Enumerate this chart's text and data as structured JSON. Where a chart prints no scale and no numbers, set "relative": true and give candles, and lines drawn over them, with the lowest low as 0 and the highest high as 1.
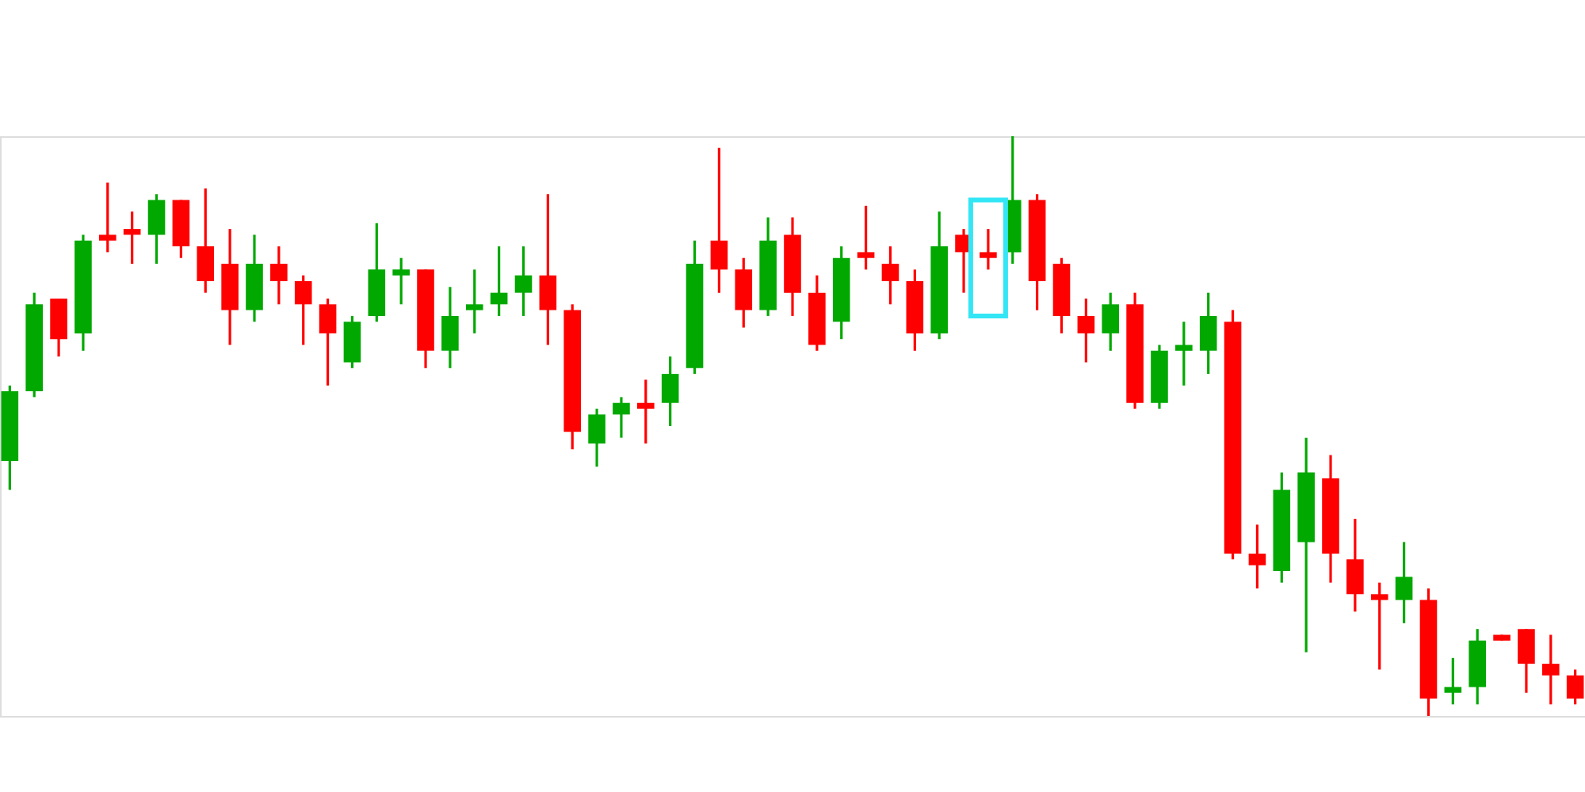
{
  "chart_data": {
    "type": "candlestick",
    "relative": true,
    "categories": [
      null,
      null,
      null,
      null,
      null,
      null,
      null,
      null,
      null,
      null,
      null,
      null,
      null,
      null,
      null,
      null,
      null,
      null,
      null,
      null,
      null,
      null,
      null,
      null,
      null,
      null,
      null,
      null,
      null,
      null,
      null,
      null,
      null,
      null,
      null,
      null,
      null,
      null,
      null,
      null,
      null,
      null,
      null,
      null,
      null,
      null,
      null,
      null,
      null,
      null,
      null,
      null,
      null,
      null,
      null,
      null,
      null,
      null,
      null,
      null,
      null,
      null,
      null,
      null,
      null
    ],
    "ohlc": [
      [
        0.44,
        0.57,
        0.39,
        0.56
      ],
      [
        0.56,
        0.73,
        0.55,
        0.71
      ],
      [
        0.72,
        0.72,
        0.62,
        0.65
      ],
      [
        0.66,
        0.83,
        0.63,
        0.82
      ],
      [
        0.83,
        0.92,
        0.8,
        0.82
      ],
      [
        0.84,
        0.87,
        0.78,
        0.83
      ],
      [
        0.83,
        0.9,
        0.78,
        0.89
      ],
      [
        0.89,
        0.89,
        0.79,
        0.81
      ],
      [
        0.81,
        0.91,
        0.73,
        0.75
      ],
      [
        0.78,
        0.84,
        0.64,
        0.7
      ],
      [
        0.7,
        0.83,
        0.68,
        0.78
      ],
      [
        0.78,
        0.81,
        0.71,
        0.75
      ],
      [
        0.75,
        0.76,
        0.64,
        0.71
      ],
      [
        0.71,
        0.72,
        0.57,
        0.66
      ],
      [
        0.61,
        0.69,
        0.6,
        0.68
      ],
      [
        0.69,
        0.85,
        0.68,
        0.77
      ],
      [
        0.76,
        0.79,
        0.71,
        0.77
      ],
      [
        0.77,
        0.77,
        0.6,
        0.63
      ],
      [
        0.63,
        0.74,
        0.6,
        0.69
      ],
      [
        0.7,
        0.77,
        0.66,
        0.71
      ],
      [
        0.71,
        0.81,
        0.69,
        0.73
      ],
      [
        0.73,
        0.81,
        0.69,
        0.76
      ],
      [
        0.76,
        0.9,
        0.64,
        0.7
      ],
      [
        0.7,
        0.71,
        0.46,
        0.49
      ],
      [
        0.47,
        0.53,
        0.43,
        0.52
      ],
      [
        0.52,
        0.55,
        0.48,
        0.54
      ],
      [
        0.54,
        0.58,
        0.47,
        0.53
      ],
      [
        0.54,
        0.62,
        0.5,
        0.59
      ],
      [
        0.6,
        0.82,
        0.59,
        0.78
      ],
      [
        0.82,
        0.98,
        0.73,
        0.77
      ],
      [
        0.77,
        0.79,
        0.67,
        0.7
      ],
      [
        0.7,
        0.86,
        0.69,
        0.82
      ],
      [
        0.83,
        0.86,
        0.69,
        0.73
      ],
      [
        0.73,
        0.76,
        0.63,
        0.64
      ],
      [
        0.68,
        0.81,
        0.65,
        0.79
      ],
      [
        0.8,
        0.88,
        0.77,
        0.79
      ],
      [
        0.78,
        0.81,
        0.71,
        0.75
      ],
      [
        0.75,
        0.77,
        0.63,
        0.66
      ],
      [
        0.66,
        0.87,
        0.65,
        0.81
      ],
      [
        0.83,
        0.84,
        0.73,
        0.8
      ],
      [
        0.8,
        0.84,
        0.77,
        0.79
      ],
      [
        0.8,
        1.0,
        0.78,
        0.89
      ],
      [
        0.89,
        0.9,
        0.7,
        0.75
      ],
      [
        0.78,
        0.79,
        0.66,
        0.69
      ],
      [
        0.69,
        0.72,
        0.61,
        0.66
      ],
      [
        0.66,
        0.73,
        0.63,
        0.71
      ],
      [
        0.71,
        0.73,
        0.53,
        0.54
      ],
      [
        0.54,
        0.64,
        0.53,
        0.63
      ],
      [
        0.63,
        0.68,
        0.57,
        0.64
      ],
      [
        0.63,
        0.73,
        0.59,
        0.69
      ],
      [
        0.68,
        0.7,
        0.27,
        0.28
      ],
      [
        0.28,
        0.33,
        0.22,
        0.26
      ],
      [
        0.25,
        0.42,
        0.23,
        0.39
      ],
      [
        0.3,
        0.48,
        0.11,
        0.42
      ],
      [
        0.41,
        0.45,
        0.23,
        0.28
      ],
      [
        0.27,
        0.34,
        0.18,
        0.21
      ],
      [
        0.21,
        0.23,
        0.08,
        0.2
      ],
      [
        0.2,
        0.3,
        0.16,
        0.24
      ],
      [
        0.2,
        0.22,
        0.0,
        0.03
      ],
      [
        0.04,
        0.1,
        0.02,
        0.05
      ],
      [
        0.05,
        0.15,
        0.02,
        0.13
      ],
      [
        0.14,
        0.14,
        0.13,
        0.13
      ],
      [
        0.15,
        0.15,
        0.04,
        0.09
      ],
      [
        0.09,
        0.14,
        0.02,
        0.07
      ],
      [
        0.07,
        0.08,
        0.02,
        0.03
      ]
    ],
    "colors": [
      "#00a800",
      "#00a800",
      "#ff0000",
      "#00a800",
      "#ff0000",
      "#ff0000",
      "#00a800",
      "#ff0000",
      "#ff0000",
      "#ff0000",
      "#00a800",
      "#ff0000",
      "#ff0000",
      "#ff0000",
      "#00a800",
      "#00a800",
      "#00a800",
      "#ff0000",
      "#00a800",
      "#00a800",
      "#00a800",
      "#00a800",
      "#ff0000",
      "#ff0000",
      "#00a800",
      "#00a800",
      "#ff0000",
      "#00a800",
      "#00a800",
      "#ff0000",
      "#ff0000",
      "#00a800",
      "#ff0000",
      "#ff0000",
      "#00a800",
      "#ff0000",
      "#ff0000",
      "#ff0000",
      "#00a800",
      "#ff0000",
      "#ff0000",
      "#00a800",
      "#ff0000",
      "#ff0000",
      "#ff0000",
      "#00a800",
      "#ff0000",
      "#00a800",
      "#00a800",
      "#00a800",
      "#ff0000",
      "#ff0000",
      "#00a800",
      "#00a800",
      "#ff0000",
      "#ff0000",
      "#ff0000",
      "#00a800",
      "#ff0000",
      "#00a800",
      "#00a800",
      "#ff0000",
      "#ff0000",
      "#ff0000",
      "#ff0000"
    ]
  }
}
